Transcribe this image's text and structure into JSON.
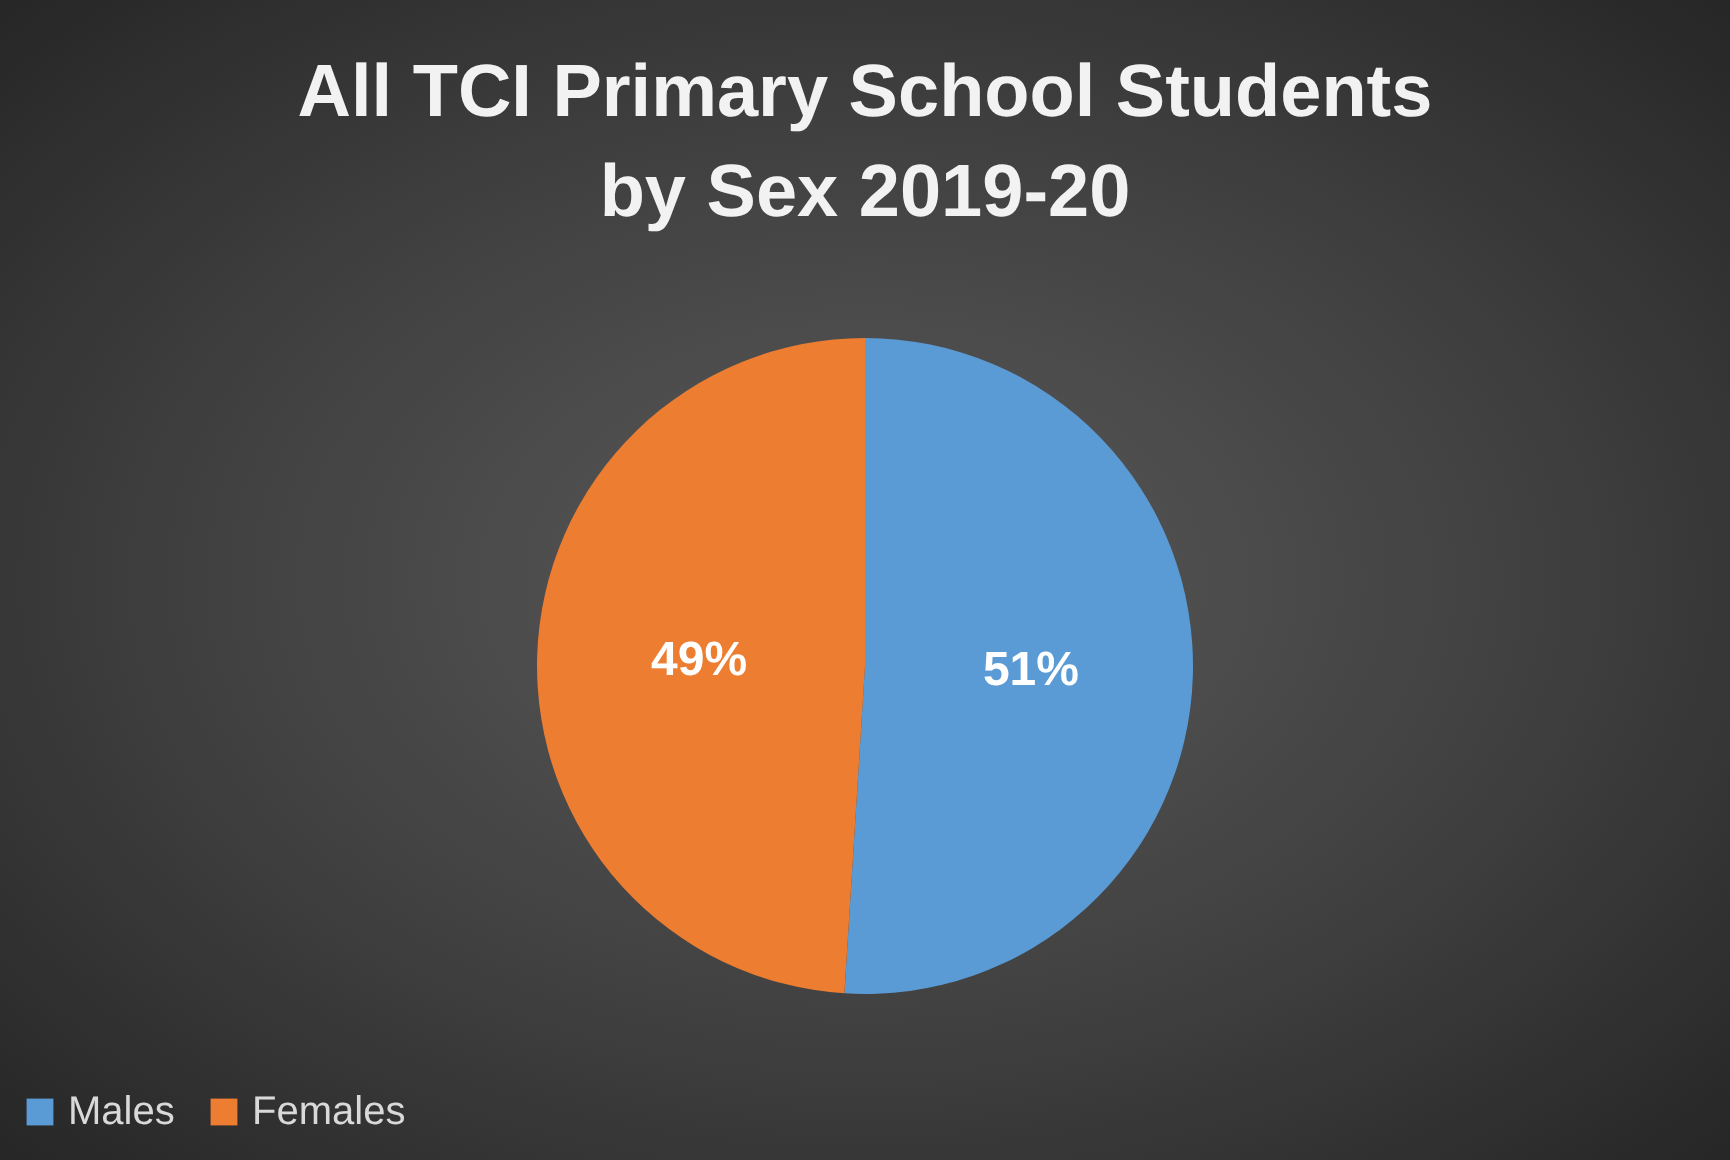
{
  "chart_data": {
    "type": "pie",
    "title": "All TCI Primary School Students\nby Sex 2019-20",
    "categories": [
      "Males",
      "Females"
    ],
    "values": [
      51,
      49
    ],
    "colors": [
      "#5b9bd5",
      "#ed7d31"
    ],
    "value_labels": [
      "51%",
      "49%"
    ],
    "legend": "bottom"
  }
}
